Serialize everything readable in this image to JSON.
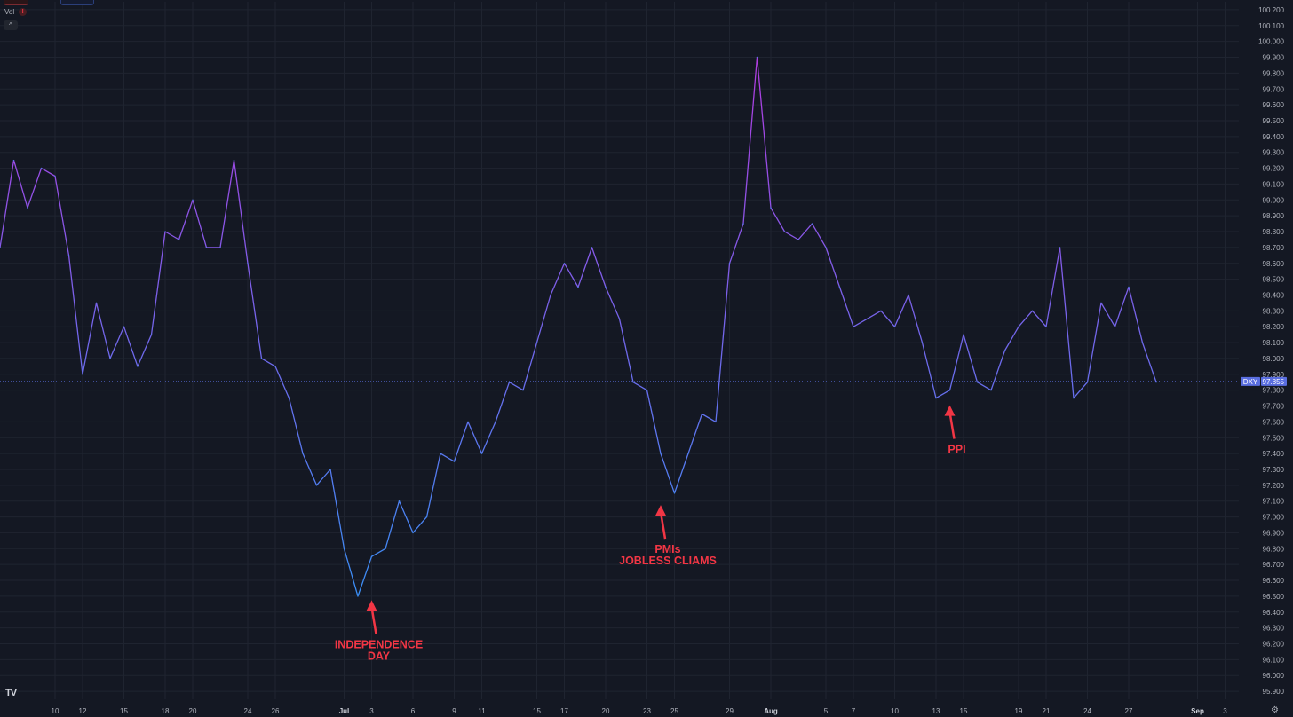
{
  "toolbar": {
    "vol_label": "Vol",
    "vol_warning": "!",
    "collapse_glyph": "^",
    "logo_text": "TV",
    "settings_glyph": "⚙"
  },
  "colors": {
    "background": "#141823",
    "grid": "#1f2430",
    "axis_text": "#b2b5be",
    "line_high": "#b03ce0",
    "line_low": "#3a8ef5",
    "annotation": "#f23645",
    "price_tag": "#5a6ee0"
  },
  "chart_data": {
    "type": "line",
    "symbol": "DXY",
    "last_price": 97.855,
    "ylim": [
      95.85,
      100.25
    ],
    "y_ticks": [
      "100.200",
      "100.100",
      "100.000",
      "99.900",
      "99.800",
      "99.700",
      "99.600",
      "99.500",
      "99.400",
      "99.300",
      "99.200",
      "99.100",
      "99.000",
      "98.900",
      "98.800",
      "98.700",
      "98.600",
      "98.500",
      "98.400",
      "98.300",
      "98.200",
      "98.100",
      "98.000",
      "97.900",
      "97.800",
      "97.700",
      "97.600",
      "97.500",
      "97.400",
      "97.300",
      "97.200",
      "97.100",
      "97.000",
      "96.900",
      "96.800",
      "96.700",
      "96.600",
      "96.500",
      "96.400",
      "96.300",
      "96.200",
      "96.100",
      "96.000",
      "95.900"
    ],
    "x_ticks": [
      "10",
      "12",
      "15",
      "18",
      "20",
      "24",
      "26",
      "Jul",
      "3",
      "6",
      "9",
      "11",
      "15",
      "17",
      "20",
      "23",
      "25",
      "29",
      "Aug",
      "5",
      "7",
      "10",
      "13",
      "15",
      "19",
      "21",
      "24",
      "27",
      "Sep",
      "3"
    ],
    "xlim": [
      "2025-06-06",
      "2025-09-04"
    ],
    "grid": true,
    "series": [
      {
        "points": [
          [
            "2025-06-06",
            98.7
          ],
          [
            "2025-06-07",
            99.25
          ],
          [
            "2025-06-08",
            98.95
          ],
          [
            "2025-06-09",
            99.2
          ],
          [
            "2025-06-10",
            99.15
          ],
          [
            "2025-06-11",
            98.65
          ],
          [
            "2025-06-12",
            97.9
          ],
          [
            "2025-06-13",
            98.35
          ],
          [
            "2025-06-14",
            98.0
          ],
          [
            "2025-06-15",
            98.2
          ],
          [
            "2025-06-16",
            97.95
          ],
          [
            "2025-06-17",
            98.15
          ],
          [
            "2025-06-18",
            98.8
          ],
          [
            "2025-06-19",
            98.75
          ],
          [
            "2025-06-20",
            99.0
          ],
          [
            "2025-06-21",
            98.7
          ],
          [
            "2025-06-22",
            98.7
          ],
          [
            "2025-06-23",
            99.25
          ],
          [
            "2025-06-24",
            98.6
          ],
          [
            "2025-06-25",
            98.0
          ],
          [
            "2025-06-26",
            97.95
          ],
          [
            "2025-06-27",
            97.75
          ],
          [
            "2025-06-28",
            97.4
          ],
          [
            "2025-06-29",
            97.2
          ],
          [
            "2025-06-30",
            97.3
          ],
          [
            "2025-07-01",
            96.8
          ],
          [
            "2025-07-02",
            96.5
          ],
          [
            "2025-07-03",
            96.75
          ],
          [
            "2025-07-04",
            96.8
          ],
          [
            "2025-07-05",
            97.1
          ],
          [
            "2025-07-06",
            96.9
          ],
          [
            "2025-07-07",
            97.0
          ],
          [
            "2025-07-08",
            97.4
          ],
          [
            "2025-07-09",
            97.35
          ],
          [
            "2025-07-10",
            97.6
          ],
          [
            "2025-07-11",
            97.4
          ],
          [
            "2025-07-12",
            97.6
          ],
          [
            "2025-07-13",
            97.85
          ],
          [
            "2025-07-14",
            97.8
          ],
          [
            "2025-07-15",
            98.1
          ],
          [
            "2025-07-16",
            98.4
          ],
          [
            "2025-07-17",
            98.6
          ],
          [
            "2025-07-18",
            98.45
          ],
          [
            "2025-07-19",
            98.7
          ],
          [
            "2025-07-20",
            98.45
          ],
          [
            "2025-07-21",
            98.25
          ],
          [
            "2025-07-22",
            97.85
          ],
          [
            "2025-07-23",
            97.8
          ],
          [
            "2025-07-24",
            97.4
          ],
          [
            "2025-07-25",
            97.15
          ],
          [
            "2025-07-26",
            97.4
          ],
          [
            "2025-07-27",
            97.65
          ],
          [
            "2025-07-28",
            97.6
          ],
          [
            "2025-07-29",
            98.6
          ],
          [
            "2025-07-30",
            98.85
          ],
          [
            "2025-07-31",
            99.9
          ],
          [
            "2025-08-01",
            98.95
          ],
          [
            "2025-08-02",
            98.8
          ],
          [
            "2025-08-03",
            98.75
          ],
          [
            "2025-08-04",
            98.85
          ],
          [
            "2025-08-05",
            98.7
          ],
          [
            "2025-08-06",
            98.45
          ],
          [
            "2025-08-07",
            98.2
          ],
          [
            "2025-08-08",
            98.25
          ],
          [
            "2025-08-09",
            98.3
          ],
          [
            "2025-08-10",
            98.2
          ],
          [
            "2025-08-11",
            98.4
          ],
          [
            "2025-08-12",
            98.1
          ],
          [
            "2025-08-13",
            97.75
          ],
          [
            "2025-08-14",
            97.8
          ],
          [
            "2025-08-15",
            98.15
          ],
          [
            "2025-08-16",
            97.85
          ],
          [
            "2025-08-17",
            97.8
          ],
          [
            "2025-08-18",
            98.05
          ],
          [
            "2025-08-19",
            98.2
          ],
          [
            "2025-08-20",
            98.3
          ],
          [
            "2025-08-21",
            98.2
          ],
          [
            "2025-08-22",
            98.7
          ],
          [
            "2025-08-23",
            97.75
          ],
          [
            "2025-08-24",
            97.85
          ],
          [
            "2025-08-25",
            98.35
          ],
          [
            "2025-08-26",
            98.2
          ],
          [
            "2025-08-27",
            98.45
          ],
          [
            "2025-08-28",
            98.1
          ],
          [
            "2025-08-29",
            97.85
          ]
        ]
      }
    ],
    "annotations": [
      {
        "lines": [
          "INDEPENDENCE",
          "DAY"
        ],
        "date": "2025-07-03",
        "value": 96.52
      },
      {
        "lines": [
          "PMIs",
          "JOBLESS CLIAMS"
        ],
        "date": "2025-07-24",
        "value": 97.12
      },
      {
        "lines": [
          "PPI"
        ],
        "date": "2025-08-14",
        "value": 97.75
      }
    ]
  }
}
